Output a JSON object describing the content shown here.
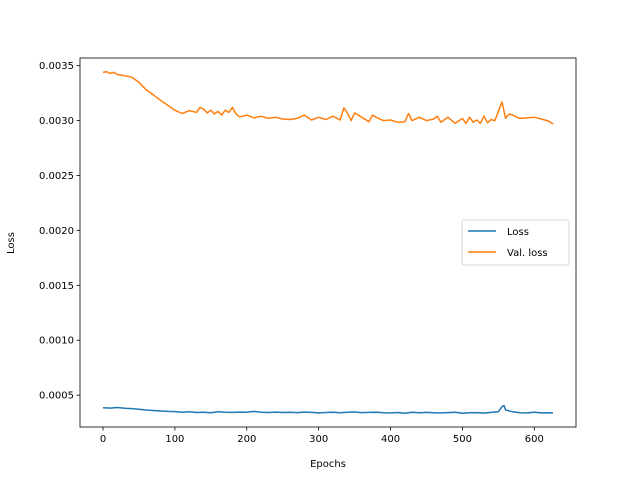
{
  "chart_data": {
    "type": "line",
    "title": "",
    "xlabel": "Epochs",
    "ylabel": "Loss",
    "xlim": [
      -32,
      658
    ],
    "ylim": [
      0.00021,
      0.00357
    ],
    "xticks": [
      0,
      100,
      200,
      300,
      400,
      500,
      600
    ],
    "yticks": [
      0.0005,
      0.001,
      0.0015,
      0.002,
      0.0025,
      0.003,
      0.0035
    ],
    "xtick_labels": [
      "0",
      "100",
      "200",
      "300",
      "400",
      "500",
      "600"
    ],
    "ytick_labels": [
      "0.0005",
      "0.0010",
      "0.0015",
      "0.0020",
      "0.0025",
      "0.0030",
      "0.0035"
    ],
    "grid": false,
    "legend_position": "center-right",
    "series": [
      {
        "name": "Loss",
        "color": "#1f77b4",
        "x": [
          0,
          10,
          20,
          30,
          40,
          50,
          60,
          70,
          80,
          90,
          100,
          110,
          120,
          130,
          140,
          150,
          160,
          170,
          180,
          190,
          200,
          210,
          220,
          230,
          240,
          250,
          260,
          270,
          280,
          290,
          300,
          310,
          320,
          330,
          340,
          350,
          360,
          370,
          380,
          390,
          400,
          410,
          420,
          430,
          440,
          450,
          460,
          470,
          480,
          490,
          500,
          510,
          520,
          530,
          540,
          550,
          555,
          558,
          560,
          570,
          580,
          590,
          600,
          610,
          620,
          626
        ],
        "y": [
          0.000385,
          0.000382,
          0.000388,
          0.00038,
          0.000378,
          0.000372,
          0.000365,
          0.00036,
          0.000356,
          0.000352,
          0.00035,
          0.000345,
          0.000348,
          0.000342,
          0.000345,
          0.00034,
          0.000348,
          0.000345,
          0.000343,
          0.000346,
          0.000345,
          0.000352,
          0.000344,
          0.000342,
          0.000346,
          0.000342,
          0.000344,
          0.000341,
          0.000346,
          0.000343,
          0.000338,
          0.000342,
          0.000345,
          0.00034,
          0.000344,
          0.000347,
          0.000341,
          0.000343,
          0.000345,
          0.00034,
          0.000338,
          0.000342,
          0.000336,
          0.000344,
          0.000339,
          0.000343,
          0.00034,
          0.000338,
          0.000341,
          0.000344,
          0.000336,
          0.000339,
          0.000341,
          0.000337,
          0.000343,
          0.00035,
          0.000395,
          0.000405,
          0.000365,
          0.000348,
          0.00034,
          0.000338,
          0.000344,
          0.000338,
          0.00034,
          0.000338
        ]
      },
      {
        "name": "Val. loss",
        "color": "#ff7f0e",
        "x": [
          0,
          5,
          10,
          15,
          20,
          30,
          40,
          50,
          60,
          70,
          80,
          90,
          100,
          110,
          120,
          130,
          135,
          140,
          145,
          150,
          155,
          160,
          165,
          170,
          175,
          180,
          185,
          190,
          200,
          210,
          220,
          230,
          240,
          250,
          260,
          270,
          280,
          290,
          300,
          310,
          320,
          330,
          335,
          340,
          345,
          350,
          360,
          370,
          375,
          380,
          390,
          400,
          410,
          420,
          425,
          430,
          440,
          450,
          460,
          465,
          470,
          480,
          490,
          500,
          505,
          510,
          515,
          520,
          525,
          530,
          535,
          540,
          545,
          550,
          555,
          560,
          565,
          570,
          580,
          590,
          600,
          610,
          620,
          626
        ],
        "y": [
          0.00344,
          0.003445,
          0.00343,
          0.00344,
          0.00342,
          0.00341,
          0.003395,
          0.00335,
          0.00328,
          0.003235,
          0.003185,
          0.00314,
          0.003095,
          0.003065,
          0.00309,
          0.003075,
          0.00312,
          0.003105,
          0.00307,
          0.003095,
          0.00306,
          0.003085,
          0.00305,
          0.003095,
          0.003075,
          0.00312,
          0.00306,
          0.003035,
          0.00305,
          0.003025,
          0.00304,
          0.00302,
          0.00303,
          0.003015,
          0.00301,
          0.00302,
          0.00305,
          0.003005,
          0.00303,
          0.00301,
          0.00304,
          0.003005,
          0.003115,
          0.00307,
          0.003,
          0.00307,
          0.00303,
          0.00299,
          0.00305,
          0.00303,
          0.003,
          0.003005,
          0.002985,
          0.00299,
          0.003065,
          0.003,
          0.00303,
          0.003,
          0.003015,
          0.00304,
          0.002985,
          0.00303,
          0.002975,
          0.00302,
          0.002975,
          0.00303,
          0.002985,
          0.003005,
          0.002975,
          0.00304,
          0.00298,
          0.00301,
          0.003,
          0.003085,
          0.00317,
          0.00302,
          0.00306,
          0.00305,
          0.00302,
          0.003025,
          0.00303,
          0.003015,
          0.002995,
          0.00297
        ]
      }
    ]
  }
}
